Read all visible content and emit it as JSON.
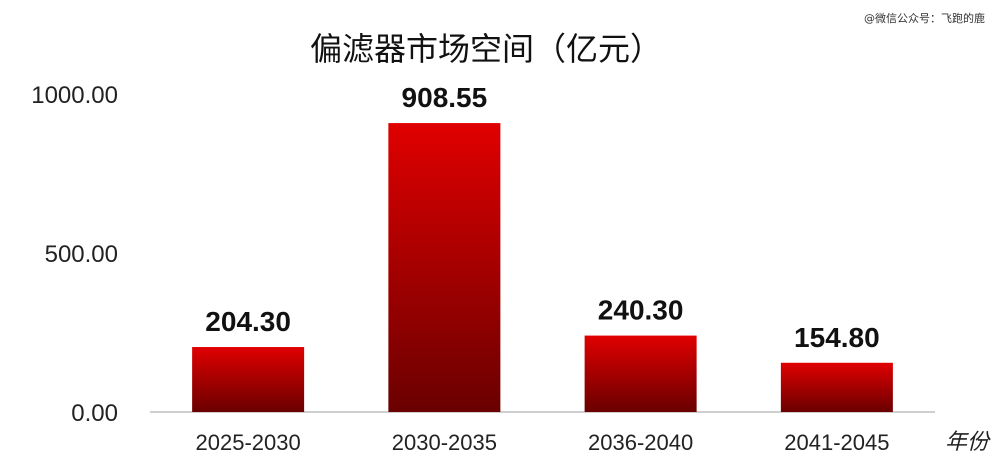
{
  "watermark": "@微信公众号：飞跑的鹿",
  "chart_data": {
    "type": "bar",
    "title": "偏滤器市场空间（亿元）",
    "xlabel": "年份",
    "ylabel": "",
    "categories": [
      "2025-2030",
      "2030-2035",
      "2036-2040",
      "2041-2045"
    ],
    "values": [
      204.3,
      908.55,
      240.3,
      154.8
    ],
    "value_labels": [
      "204.30",
      "908.55",
      "240.30",
      "154.80"
    ],
    "yticks": [
      0,
      500,
      1000
    ],
    "ytick_labels": [
      "0.00",
      "500.00",
      "1000.00"
    ],
    "ylim": [
      0,
      1000
    ],
    "grid": false,
    "legend": "none",
    "colors": {
      "bar_top": "#e00000",
      "bar_bottom": "#6a0000",
      "axis": "#bfbfbf"
    }
  }
}
